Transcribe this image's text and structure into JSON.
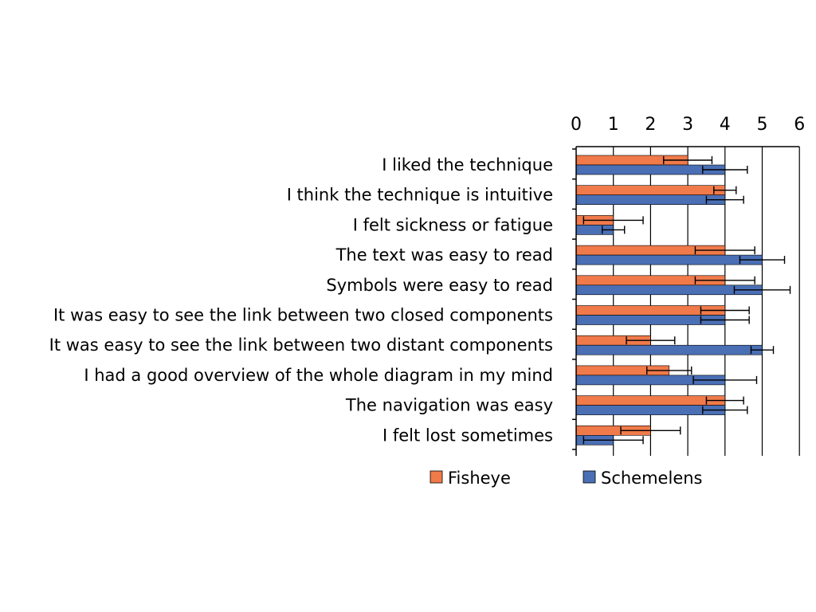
{
  "chart_data": {
    "type": "bar",
    "orientation": "horizontal",
    "xlim": [
      0,
      6
    ],
    "xticks": [
      0,
      1,
      2,
      3,
      4,
      5,
      6
    ],
    "grid": true,
    "legend_position": "bottom",
    "categories": [
      "I liked the technique",
      "I think the technique is intuitive",
      "I felt sickness or fatigue",
      "The text was easy to read",
      "Symbols were easy to read",
      "It was easy to see the link between two closed components",
      "It was easy to see the link between two distant components",
      "I had a good overview of the whole diagram in my mind",
      "The navigation was easy",
      "I felt lost sometimes"
    ],
    "series": [
      {
        "name": "Fisheye",
        "color": "#F07A4A",
        "values": [
          3.0,
          4.0,
          1.0,
          4.0,
          4.0,
          4.0,
          2.0,
          2.5,
          4.0,
          2.0
        ],
        "error": [
          0.65,
          0.3,
          0.8,
          0.8,
          0.8,
          0.65,
          0.65,
          0.6,
          0.5,
          0.8
        ]
      },
      {
        "name": "Schemelens",
        "color": "#4A6FB5",
        "values": [
          4.0,
          4.0,
          1.0,
          5.0,
          5.0,
          4.0,
          5.0,
          4.0,
          4.0,
          1.0
        ],
        "error": [
          0.6,
          0.5,
          0.3,
          0.6,
          0.75,
          0.65,
          0.3,
          0.85,
          0.6,
          0.8
        ]
      }
    ]
  }
}
